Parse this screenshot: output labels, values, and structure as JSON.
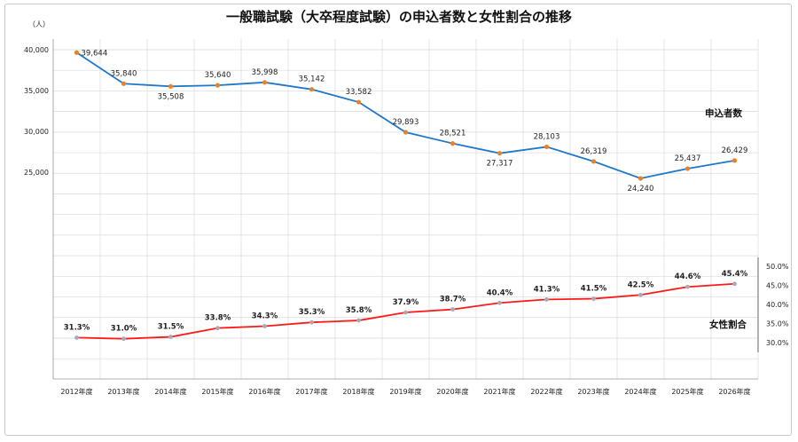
{
  "chart_data": {
    "type": "line",
    "title": "一般職試験（大卒程度試験）の申込者数と女性割合の推移",
    "y_unit": "（人）",
    "categories": [
      "2012年度",
      "2013年度",
      "2014年度",
      "2015年度",
      "2016年度",
      "2017年度",
      "2018年度",
      "2019年度",
      "2020年度",
      "2021年度",
      "2022年度",
      "2023年度",
      "2024年度",
      "2025年度",
      "2026年度"
    ],
    "series": [
      {
        "name": "申込者数",
        "axis": "left",
        "color": "#1f78c8",
        "marker_color": "#e8822a",
        "values": [
          39644,
          35840,
          35508,
          35640,
          35998,
          35142,
          33582,
          29893,
          28521,
          27317,
          28103,
          26319,
          24240,
          25437,
          26429
        ],
        "labels": [
          "39,644",
          "35,840",
          "35,508",
          "35,640",
          "35,998",
          "35,142",
          "33,582",
          "29,893",
          "28,521",
          "27,317",
          "28,103",
          "26,319",
          "24,240",
          "25,437",
          "26,429"
        ]
      },
      {
        "name": "女性割合",
        "axis": "right",
        "color": "#ff1a1a",
        "marker_color": "#a8a8b8",
        "values": [
          31.3,
          31.0,
          31.5,
          33.8,
          34.3,
          35.3,
          35.8,
          37.9,
          38.7,
          40.4,
          41.3,
          41.5,
          42.5,
          44.6,
          45.4
        ],
        "labels": [
          "31.3%",
          "31.0%",
          "31.5%",
          "33.8%",
          "34.3%",
          "35.3%",
          "35.8%",
          "37.9%",
          "38.7%",
          "40.4%",
          "41.3%",
          "41.5%",
          "42.5%",
          "44.6%",
          "45.4%"
        ]
      }
    ],
    "left_axis": {
      "ticks": [
        "40,000",
        "35,000",
        "30,000",
        "25,000"
      ],
      "tick_values": [
        40000,
        35000,
        30000,
        25000
      ]
    },
    "right_axis": {
      "ticks": [
        "50.0%",
        "45.0%",
        "40.0%",
        "35.0%",
        "30.0%"
      ],
      "tick_values": [
        50,
        45,
        40,
        35,
        30
      ]
    },
    "grid": true
  }
}
